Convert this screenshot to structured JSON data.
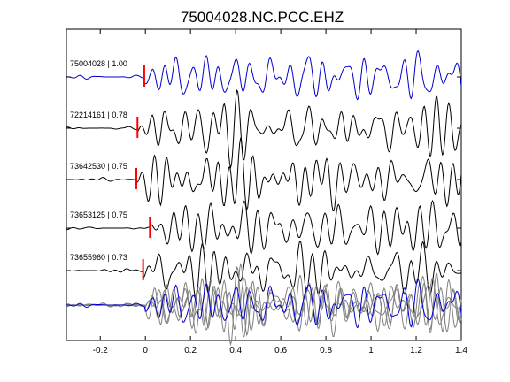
{
  "chart_data": {
    "type": "line",
    "title": "75004028.NC.PCC.EHZ",
    "xlabel": "",
    "ylabel": "",
    "xlim": [
      -0.35,
      1.4
    ],
    "xticks": [
      -0.2,
      0,
      0.2,
      0.4,
      0.6,
      0.8,
      1,
      1.2,
      1.4
    ],
    "xtick_labels": [
      "-0.2",
      "0",
      "0.2",
      "0.4",
      "0.6",
      "0.8",
      "1",
      "1.2",
      "1.4"
    ],
    "grid": false,
    "legend": "none",
    "colors": {
      "master": "#0000cc",
      "trace": "#000000",
      "stack": "#808080",
      "pick": "#ff0000"
    },
    "traces": [
      {
        "label": "75004028 | 1.00",
        "id": "75004028",
        "cc": 1.0,
        "pick_time": -0.005,
        "color": "master"
      },
      {
        "label": "72214161 | 0.78",
        "id": "72214161",
        "cc": 0.78,
        "pick_time": -0.035,
        "color": "trace"
      },
      {
        "label": "73642530 | 0.75",
        "id": "73642530",
        "cc": 0.75,
        "pick_time": -0.04,
        "color": "trace"
      },
      {
        "label": "73653125 | 0.75",
        "id": "73653125",
        "cc": 0.75,
        "pick_time": 0.02,
        "color": "trace"
      },
      {
        "label": "73655960 | 0.73",
        "id": "73655960",
        "cc": 0.73,
        "pick_time": -0.01,
        "color": "trace"
      }
    ],
    "overlay": {
      "note": "all traces aligned and overlaid, master in blue"
    }
  }
}
